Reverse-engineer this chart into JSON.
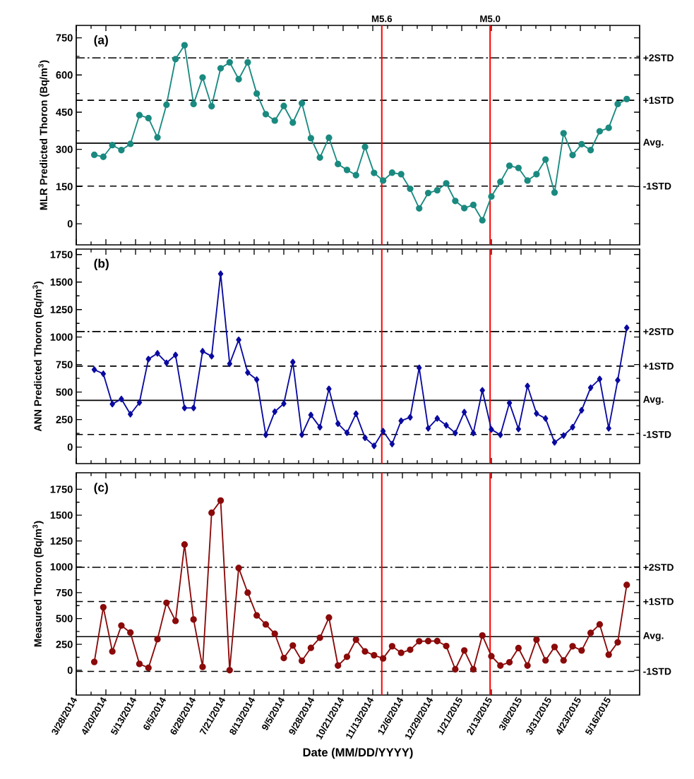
{
  "chart_data": [
    {
      "type": "line",
      "title": "(a)",
      "ylabel": "MLR Predicted Thoron (Bq/m$^{3}$)",
      "marker": "circle",
      "line_style": "solid",
      "tick_labels": "y",
      "x": [
        "2014-04-11",
        "2014-04-18",
        "2014-04-25",
        "2014-05-02",
        "2014-05-09",
        "2014-05-16",
        "2014-05-23",
        "2014-05-30",
        "2014-06-06",
        "2014-06-13",
        "2014-06-20",
        "2014-06-27",
        "2014-07-04",
        "2014-07-11",
        "2014-07-18",
        "2014-07-25",
        "2014-08-01",
        "2014-08-08",
        "2014-08-15",
        "2014-08-22",
        "2014-08-29",
        "2014-09-05",
        "2014-09-12",
        "2014-09-19",
        "2014-09-26",
        "2014-10-03",
        "2014-10-10",
        "2014-10-17",
        "2014-10-24",
        "2014-10-31",
        "2014-11-07",
        "2014-11-14",
        "2014-11-21",
        "2014-11-28",
        "2014-12-05",
        "2014-12-12",
        "2014-12-19",
        "2014-12-26",
        "2015-01-02",
        "2015-01-09",
        "2015-01-16",
        "2015-01-23",
        "2015-01-30",
        "2015-02-06",
        "2015-02-13",
        "2015-02-20",
        "2015-02-27",
        "2015-03-06",
        "2015-03-13",
        "2015-03-20",
        "2015-03-27",
        "2015-04-03",
        "2015-04-10",
        "2015-04-17",
        "2015-04-24",
        "2015-05-01",
        "2015-05-08",
        "2015-05-15",
        "2015-05-22",
        "2015-05-29"
      ],
      "series": [
        {
          "color": "#1a8a80",
          "values": [
            278,
            270,
            317,
            297,
            322,
            438,
            426,
            348,
            480,
            664,
            720,
            483,
            590,
            474,
            627,
            651,
            583,
            651,
            525,
            442,
            416,
            475,
            408,
            486,
            345,
            267,
            347,
            241,
            217,
            196,
            310,
            205,
            174,
            206,
            200,
            141,
            62,
            124,
            135,
            163,
            92,
            63,
            76,
            14,
            110,
            169,
            234,
            225,
            174,
            200,
            259,
            126,
            365,
            277,
            321,
            297,
            373,
            387,
            483,
            503
          ]
        }
      ],
      "xlim": [
        "2014-03-28",
        "2015-06-08"
      ],
      "xticks": [
        {
          "value": "2014-03-28",
          "label": null
        },
        {
          "value": "2014-04-20",
          "label": null
        },
        {
          "value": "2014-05-13",
          "label": null
        },
        {
          "value": "2014-06-05",
          "label": null
        },
        {
          "value": "2014-06-28",
          "label": null
        },
        {
          "value": "2014-07-21",
          "label": null
        },
        {
          "value": "2014-08-13",
          "label": null
        },
        {
          "value": "2014-09-05",
          "label": null
        },
        {
          "value": "2014-09-28",
          "label": null
        },
        {
          "value": "2014-10-21",
          "label": null
        },
        {
          "value": "2014-11-13",
          "label": null
        },
        {
          "value": "2014-12-06",
          "label": null
        },
        {
          "value": "2014-12-29",
          "label": null
        },
        {
          "value": "2015-01-21",
          "label": null
        },
        {
          "value": "2015-02-13",
          "label": null
        },
        {
          "value": "2015-03-08",
          "label": null
        },
        {
          "value": "2015-03-31",
          "label": null
        },
        {
          "value": "2015-04-23",
          "label": null
        },
        {
          "value": "2015-05-16",
          "label": null
        }
      ],
      "ylim": [
        -85,
        800
      ],
      "yticks": [
        0,
        150,
        300,
        450,
        600,
        750
      ],
      "ref_lines": [
        {
          "axis": "y",
          "value": 669,
          "label": "+2STD",
          "line_style": "dashdot"
        },
        {
          "axis": "y",
          "value": 498,
          "label": "+1STD",
          "line_style": "dashed"
        },
        {
          "axis": "y",
          "value": 325,
          "label": "Avg.",
          "line_style": "solid"
        },
        {
          "axis": "y",
          "value": 152,
          "label": "-1STD",
          "line_style": "dashed"
        },
        {
          "axis": "x",
          "value": "2014-11-20",
          "label": "M5.6",
          "color": "#ff0000",
          "line_style": "solid"
        },
        {
          "axis": "x",
          "value": "2015-02-12",
          "label": "M5.0",
          "color": "#ff0000",
          "line_style": "solid"
        }
      ]
    },
    {
      "type": "line",
      "title": "(b)",
      "ylabel": "ANN Predicted Thoron (Bq/m$^{3}$)",
      "marker": "diamond",
      "line_style": "solid",
      "tick_labels": "y",
      "x": [
        "2014-04-11",
        "2014-04-18",
        "2014-04-25",
        "2014-05-02",
        "2014-05-09",
        "2014-05-16",
        "2014-05-23",
        "2014-05-30",
        "2014-06-06",
        "2014-06-13",
        "2014-06-20",
        "2014-06-27",
        "2014-07-04",
        "2014-07-11",
        "2014-07-18",
        "2014-07-25",
        "2014-08-01",
        "2014-08-08",
        "2014-08-15",
        "2014-08-22",
        "2014-08-29",
        "2014-09-05",
        "2014-09-12",
        "2014-09-19",
        "2014-09-26",
        "2014-10-03",
        "2014-10-10",
        "2014-10-17",
        "2014-10-24",
        "2014-10-31",
        "2014-11-07",
        "2014-11-14",
        "2014-11-21",
        "2014-11-28",
        "2014-12-05",
        "2014-12-12",
        "2014-12-19",
        "2014-12-26",
        "2015-01-02",
        "2015-01-09",
        "2015-01-16",
        "2015-01-23",
        "2015-01-30",
        "2015-02-06",
        "2015-02-13",
        "2015-02-20",
        "2015-02-27",
        "2015-03-06",
        "2015-03-13",
        "2015-03-20",
        "2015-03-27",
        "2015-04-03",
        "2015-04-10",
        "2015-04-17",
        "2015-04-24",
        "2015-05-01",
        "2015-05-08",
        "2015-05-15",
        "2015-05-22",
        "2015-05-29"
      ],
      "series": [
        {
          "color": "#0a0aa0",
          "values": [
            704,
            666,
            391,
            437,
            299,
            405,
            800,
            852,
            766,
            837,
            356,
            356,
            871,
            826,
            1575,
            758,
            975,
            677,
            613,
            111,
            322,
            395,
            773,
            113,
            292,
            181,
            529,
            213,
            130,
            303,
            85,
            11,
            145,
            28,
            239,
            271,
            721,
            171,
            260,
            198,
            128,
            318,
            128,
            516,
            160,
            111,
            401,
            164,
            555,
            305,
            260,
            43,
            105,
            181,
            335,
            540,
            619,
            171,
            608,
            1084
          ]
        }
      ],
      "xlim": [
        "2014-03-28",
        "2015-06-08"
      ],
      "xticks": [
        {
          "value": "2014-03-28",
          "label": null
        },
        {
          "value": "2014-04-20",
          "label": null
        },
        {
          "value": "2014-05-13",
          "label": null
        },
        {
          "value": "2014-06-05",
          "label": null
        },
        {
          "value": "2014-06-28",
          "label": null
        },
        {
          "value": "2014-07-21",
          "label": null
        },
        {
          "value": "2014-08-13",
          "label": null
        },
        {
          "value": "2014-09-05",
          "label": null
        },
        {
          "value": "2014-09-28",
          "label": null
        },
        {
          "value": "2014-10-21",
          "label": null
        },
        {
          "value": "2014-11-13",
          "label": null
        },
        {
          "value": "2014-12-06",
          "label": null
        },
        {
          "value": "2014-12-29",
          "label": null
        },
        {
          "value": "2015-01-21",
          "label": null
        },
        {
          "value": "2015-02-13",
          "label": null
        },
        {
          "value": "2015-03-08",
          "label": null
        },
        {
          "value": "2015-03-31",
          "label": null
        },
        {
          "value": "2015-04-23",
          "label": null
        },
        {
          "value": "2015-05-16",
          "label": null
        }
      ],
      "ylim": [
        -150,
        1800
      ],
      "yticks": [
        0,
        250,
        500,
        750,
        1000,
        1250,
        1500,
        1750
      ],
      "ref_lines": [
        {
          "axis": "y",
          "value": 1050,
          "label": "+2STD",
          "line_style": "dashdot"
        },
        {
          "axis": "y",
          "value": 736,
          "label": "+1STD",
          "line_style": "dashed"
        },
        {
          "axis": "y",
          "value": 425,
          "label": "Avg.",
          "line_style": "solid"
        },
        {
          "axis": "y",
          "value": 115,
          "label": "-1STD",
          "line_style": "dashed"
        },
        {
          "axis": "x",
          "value": "2014-11-20",
          "color": "#ff0000",
          "line_style": "solid"
        },
        {
          "axis": "x",
          "value": "2015-02-12",
          "color": "#ff0000",
          "line_style": "solid"
        }
      ]
    },
    {
      "type": "line",
      "title": "(c)",
      "ylabel": "Measured Thoron (Bq/m$^{3}$)",
      "xlabel": "Date (MM/DD/YYYY)",
      "marker": "circle",
      "line_style": "solid",
      "x": [
        "2014-04-11",
        "2014-04-18",
        "2014-04-25",
        "2014-05-02",
        "2014-05-09",
        "2014-05-16",
        "2014-05-23",
        "2014-05-30",
        "2014-06-06",
        "2014-06-13",
        "2014-06-20",
        "2014-06-27",
        "2014-07-04",
        "2014-07-11",
        "2014-07-18",
        "2014-07-25",
        "2014-08-01",
        "2014-08-08",
        "2014-08-15",
        "2014-08-22",
        "2014-08-29",
        "2014-09-05",
        "2014-09-12",
        "2014-09-19",
        "2014-09-26",
        "2014-10-03",
        "2014-10-10",
        "2014-10-17",
        "2014-10-24",
        "2014-10-31",
        "2014-11-07",
        "2014-11-14",
        "2014-11-21",
        "2014-11-28",
        "2014-12-05",
        "2014-12-12",
        "2014-12-19",
        "2014-12-26",
        "2015-01-02",
        "2015-01-09",
        "2015-01-16",
        "2015-01-23",
        "2015-01-30",
        "2015-02-06",
        "2015-02-13",
        "2015-02-20",
        "2015-02-27",
        "2015-03-06",
        "2015-03-13",
        "2015-03-20",
        "2015-03-27",
        "2015-04-03",
        "2015-04-10",
        "2015-04-17",
        "2015-04-24",
        "2015-05-01",
        "2015-05-08",
        "2015-05-15",
        "2015-05-22",
        "2015-05-29"
      ],
      "series": [
        {
          "color": "#8b0a0a",
          "values": [
            80,
            609,
            182,
            432,
            364,
            61,
            23,
            300,
            652,
            477,
            1216,
            491,
            32,
            1523,
            1641,
            0,
            989,
            750,
            530,
            443,
            352,
            118,
            239,
            91,
            216,
            314,
            509,
            45,
            130,
            295,
            182,
            145,
            114,
            232,
            168,
            198,
            280,
            282,
            282,
            234,
            9,
            191,
            9,
            336,
            136,
            45,
            77,
            214,
            45,
            295,
            95,
            225,
            95,
            232,
            191,
            361,
            443,
            150,
            270,
            825
          ]
        }
      ],
      "xlim": [
        "2014-03-28",
        "2015-06-08"
      ],
      "xticks": [
        {
          "value": "2014-03-28",
          "label": "3/28/2014"
        },
        {
          "value": "2014-04-20",
          "label": "4/20/2014"
        },
        {
          "value": "2014-05-13",
          "label": "5/13/2014"
        },
        {
          "value": "2014-06-05",
          "label": "6/5/2014"
        },
        {
          "value": "2014-06-28",
          "label": "6/28/2014"
        },
        {
          "value": "2014-07-21",
          "label": "7/21/2014"
        },
        {
          "value": "2014-08-13",
          "label": "8/13/2014"
        },
        {
          "value": "2014-09-05",
          "label": "9/5/2014"
        },
        {
          "value": "2014-09-28",
          "label": "9/28/2014"
        },
        {
          "value": "2014-10-21",
          "label": "10/21/2014"
        },
        {
          "value": "2014-11-13",
          "label": "11/13/2014"
        },
        {
          "value": "2014-12-06",
          "label": "12/6/2014"
        },
        {
          "value": "2014-12-29",
          "label": "12/29/2014"
        },
        {
          "value": "2015-01-21",
          "label": "1/21/2015"
        },
        {
          "value": "2015-02-13",
          "label": "2/13/2015"
        },
        {
          "value": "2015-03-08",
          "label": "3/8/2015"
        },
        {
          "value": "2015-03-31",
          "label": "3/31/2015"
        },
        {
          "value": "2015-04-23",
          "label": "4/23/2015"
        },
        {
          "value": "2015-05-16",
          "label": "5/16/2015"
        }
      ],
      "ylim": [
        -240,
        1910
      ],
      "yticks": [
        0,
        250,
        500,
        750,
        1000,
        1250,
        1500,
        1750
      ],
      "ref_lines": [
        {
          "axis": "y",
          "value": 995,
          "label": "+2STD",
          "line_style": "dashdot"
        },
        {
          "axis": "y",
          "value": 664,
          "label": "+1STD",
          "line_style": "dashed"
        },
        {
          "axis": "y",
          "value": 325,
          "label": "Avg.",
          "line_style": "solid"
        },
        {
          "axis": "y",
          "value": -11,
          "label": "-1STD",
          "line_style": "dashed"
        },
        {
          "axis": "x",
          "value": "2014-11-20",
          "color": "#ff0000",
          "line_style": "solid"
        },
        {
          "axis": "x",
          "value": "2015-02-12",
          "color": "#ff0000",
          "line_style": "solid"
        }
      ]
    }
  ]
}
